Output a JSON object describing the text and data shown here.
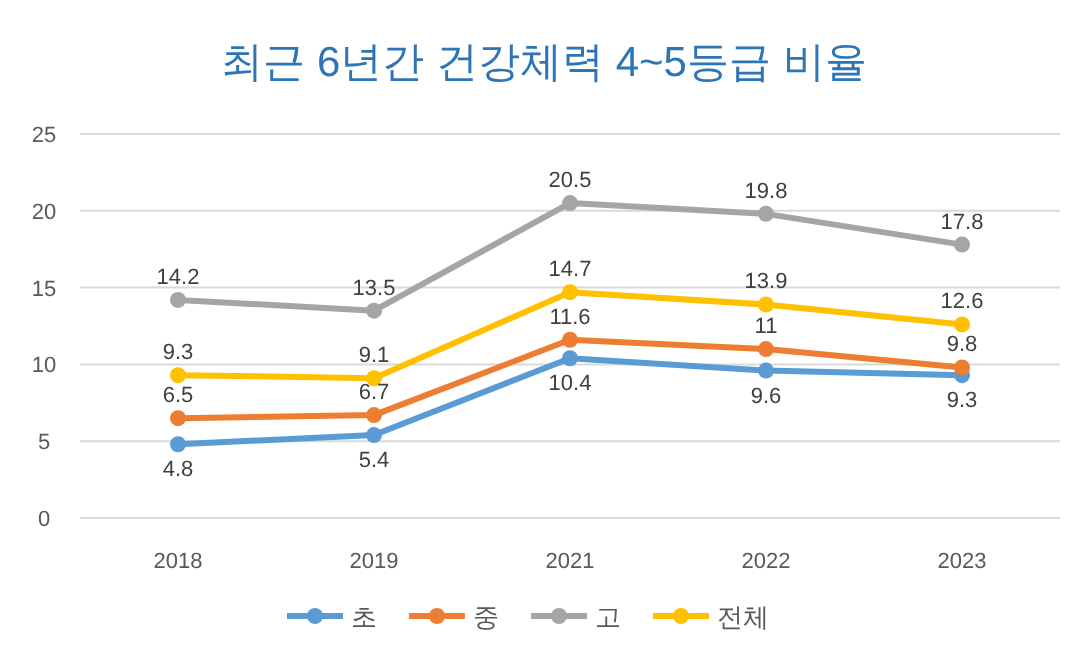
{
  "chart_data": {
    "type": "line",
    "title": "최근 6년간 건강체력 4~5등급 비율",
    "categories": [
      "2018",
      "2019",
      "2021",
      "2022",
      "2023"
    ],
    "series": [
      {
        "name": "초",
        "color": "#5b9bd5",
        "values": [
          4.8,
          5.4,
          10.4,
          9.6,
          9.3
        ]
      },
      {
        "name": "중",
        "color": "#ed7d31",
        "values": [
          6.5,
          6.7,
          11.6,
          11,
          9.8
        ]
      },
      {
        "name": "고",
        "color": "#a5a5a5",
        "values": [
          14.2,
          13.5,
          20.5,
          19.8,
          17.8
        ]
      },
      {
        "name": "전체",
        "color": "#ffc000",
        "values": [
          9.3,
          9.1,
          14.7,
          13.9,
          12.6
        ]
      }
    ],
    "ylim": [
      0,
      25
    ],
    "yticks": [
      0,
      5,
      10,
      15,
      20,
      25
    ],
    "grid": "y",
    "legend": "bottom",
    "marker": "circle",
    "line_style": "solid",
    "data_labels": true
  }
}
